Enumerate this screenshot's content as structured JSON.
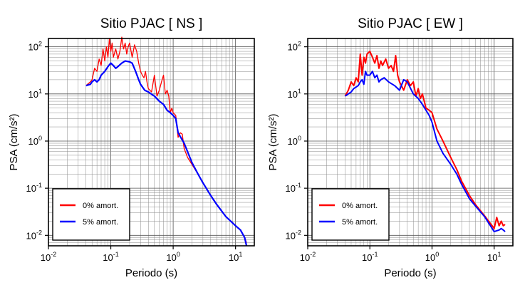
{
  "figure": {
    "background": "#ffffff"
  },
  "chart_data": [
    {
      "type": "line",
      "title": "Sitio PJAC [ NS ]",
      "xlabel": "Periodo (s)",
      "ylabel": "PSA (cm/s²)",
      "xscale": "log",
      "yscale": "log",
      "xlim": [
        0.01,
        20
      ],
      "ylim": [
        0.006,
        150
      ],
      "x_ticks": [
        {
          "v": 0.01,
          "exp": "-2"
        },
        {
          "v": 0.1,
          "exp": "-1"
        },
        {
          "v": 1,
          "exp": "0"
        },
        {
          "v": 10,
          "exp": "1"
        }
      ],
      "y_ticks": [
        {
          "v": 0.01,
          "exp": "-2"
        },
        {
          "v": 0.1,
          "exp": "-1"
        },
        {
          "v": 1,
          "exp": "0"
        },
        {
          "v": 10,
          "exp": "1"
        },
        {
          "v": 100,
          "exp": "2"
        }
      ],
      "grid": true,
      "legend": "bottom-left",
      "series": [
        {
          "name": "0% amort.",
          "color": "#ff0000",
          "stroke_width": 1.3,
          "x": [
            0.04,
            0.047,
            0.05,
            0.055,
            0.06,
            0.065,
            0.07,
            0.075,
            0.08,
            0.085,
            0.09,
            0.095,
            0.1,
            0.105,
            0.11,
            0.12,
            0.13,
            0.14,
            0.15,
            0.16,
            0.17,
            0.18,
            0.19,
            0.2,
            0.22,
            0.24,
            0.26,
            0.28,
            0.3,
            0.32,
            0.34,
            0.36,
            0.38,
            0.4,
            0.45,
            0.5,
            0.55,
            0.6,
            0.65,
            0.7,
            0.75,
            0.8,
            0.85,
            0.9,
            0.95,
            1.0,
            1.1,
            1.2,
            1.3,
            1.4,
            1.5,
            1.7,
            2.0,
            2.5,
            3,
            4,
            5,
            7,
            10,
            12,
            14,
            15
          ],
          "y": [
            15,
            18,
            20,
            35,
            30,
            55,
            40,
            90,
            50,
            100,
            60,
            150,
            80,
            120,
            60,
            90,
            55,
            80,
            160,
            90,
            120,
            70,
            100,
            120,
            60,
            110,
            80,
            45,
            30,
            25,
            22,
            30,
            18,
            13,
            11,
            25,
            9,
            12,
            18,
            25,
            10,
            12,
            9,
            4,
            5,
            4,
            3.5,
            1.2,
            1.5,
            1.4,
            0.7,
            0.45,
            0.32,
            0.2,
            0.13,
            0.07,
            0.045,
            0.025,
            0.016,
            0.013,
            0.009,
            0.007
          ]
        },
        {
          "name": "5% amort.",
          "color": "#0000ff",
          "stroke_width": 2.2,
          "x": [
            0.04,
            0.047,
            0.05,
            0.055,
            0.06,
            0.065,
            0.07,
            0.08,
            0.09,
            0.1,
            0.11,
            0.12,
            0.13,
            0.15,
            0.17,
            0.2,
            0.22,
            0.25,
            0.28,
            0.3,
            0.35,
            0.4,
            0.5,
            0.6,
            0.7,
            0.8,
            0.9,
            1.0,
            1.1,
            1.2,
            1.5,
            2.0,
            2.5,
            3,
            4,
            5,
            7,
            10,
            12,
            14,
            15
          ],
          "y": [
            15,
            16,
            18,
            20,
            18,
            20,
            25,
            30,
            38,
            45,
            40,
            35,
            38,
            45,
            50,
            48,
            45,
            30,
            20,
            16,
            12,
            11,
            9,
            7,
            6,
            4.5,
            4,
            3.5,
            3,
            1.5,
            0.9,
            0.35,
            0.2,
            0.13,
            0.07,
            0.045,
            0.025,
            0.016,
            0.013,
            0.009,
            0.006
          ]
        }
      ]
    },
    {
      "type": "line",
      "title": "Sitio PJAC [ EW ]",
      "xlabel": "Periodo (s)",
      "ylabel": "PSA (cm/s²)",
      "xscale": "log",
      "yscale": "log",
      "xlim": [
        0.01,
        20
      ],
      "ylim": [
        0.006,
        150
      ],
      "x_ticks": [
        {
          "v": 0.01,
          "exp": "-2"
        },
        {
          "v": 0.1,
          "exp": "-1"
        },
        {
          "v": 1,
          "exp": "0"
        },
        {
          "v": 10,
          "exp": "1"
        }
      ],
      "y_ticks": [
        {
          "v": 0.01,
          "exp": "-2"
        },
        {
          "v": 0.1,
          "exp": "-1"
        },
        {
          "v": 1,
          "exp": "0"
        },
        {
          "v": 10,
          "exp": "1"
        },
        {
          "v": 100,
          "exp": "2"
        }
      ],
      "grid": true,
      "legend": "bottom-left",
      "series": [
        {
          "name": "0% amort.",
          "color": "#ff0000",
          "stroke_width": 2.0,
          "x": [
            0.04,
            0.045,
            0.05,
            0.055,
            0.06,
            0.065,
            0.07,
            0.075,
            0.08,
            0.085,
            0.09,
            0.1,
            0.11,
            0.12,
            0.13,
            0.14,
            0.15,
            0.16,
            0.18,
            0.2,
            0.22,
            0.24,
            0.26,
            0.28,
            0.3,
            0.35,
            0.4,
            0.45,
            0.5,
            0.55,
            0.6,
            0.65,
            0.7,
            0.8,
            0.9,
            1.0,
            1.2,
            1.5,
            2.0,
            2.5,
            3,
            4,
            5,
            7,
            10,
            11,
            12,
            13,
            14,
            15
          ],
          "y": [
            9,
            12,
            18,
            15,
            22,
            18,
            70,
            25,
            60,
            45,
            70,
            80,
            60,
            45,
            65,
            35,
            50,
            40,
            55,
            35,
            40,
            30,
            65,
            25,
            18,
            12,
            20,
            15,
            18,
            9,
            13,
            8,
            10,
            5,
            4.5,
            4,
            1.8,
            1,
            0.45,
            0.25,
            0.14,
            0.07,
            0.045,
            0.026,
            0.014,
            0.024,
            0.016,
            0.02,
            0.016,
            0.017
          ]
        },
        {
          "name": "5% amort.",
          "color": "#0000ff",
          "stroke_width": 2.0,
          "x": [
            0.04,
            0.045,
            0.05,
            0.055,
            0.06,
            0.065,
            0.07,
            0.075,
            0.08,
            0.085,
            0.09,
            0.1,
            0.11,
            0.12,
            0.13,
            0.14,
            0.15,
            0.17,
            0.2,
            0.25,
            0.3,
            0.35,
            0.4,
            0.5,
            0.6,
            0.7,
            0.8,
            0.9,
            1.0,
            1.2,
            1.5,
            2.0,
            2.5,
            3,
            4,
            5,
            7,
            10,
            12,
            13,
            14,
            15
          ],
          "y": [
            9,
            10,
            11,
            13,
            14,
            15,
            18,
            20,
            16,
            30,
            25,
            25,
            30,
            22,
            25,
            18,
            20,
            22,
            18,
            15,
            12,
            20,
            18,
            10,
            8,
            6,
            4.5,
            3.5,
            2.5,
            1,
            0.55,
            0.32,
            0.2,
            0.12,
            0.06,
            0.042,
            0.025,
            0.012,
            0.013,
            0.014,
            0.013,
            0.012
          ]
        }
      ]
    }
  ]
}
